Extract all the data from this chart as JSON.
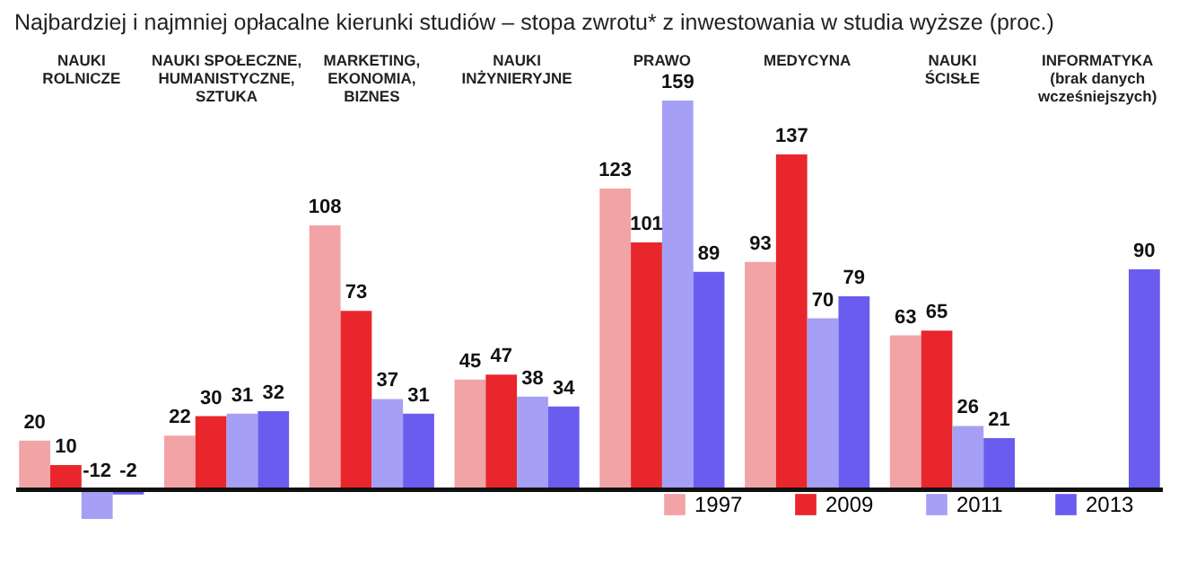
{
  "chart_data": {
    "type": "bar",
    "title": "Najbardziej i najmniej opłacalne kierunki studiów – stopa zwrotu* z inwestowania w studia wyższe (proc.)",
    "categories": [
      "NAUKI\nROLNICZE",
      "NAUKI SPOŁECZNE,\nHUMANISTYCZNE,\nSZTUKA",
      "MARKETING,\nEKONOMIA,\nBIZNES",
      "NAUKI\nINŻYNIERYJNE",
      "PRAWO",
      "MEDYCYNA",
      "NAUKI\nŚCISŁE",
      "INFORMATYKA\n(brak danych\nwcześniejszych)"
    ],
    "series": [
      {
        "name": "1997",
        "color": "#f2a3a6",
        "values": [
          20,
          22,
          108,
          45,
          123,
          93,
          63,
          null
        ]
      },
      {
        "name": "2009",
        "color": "#e8262b",
        "values": [
          10,
          30,
          73,
          47,
          101,
          137,
          65,
          null
        ]
      },
      {
        "name": "2011",
        "color": "#a59ff5",
        "values": [
          -12,
          31,
          37,
          38,
          159,
          70,
          26,
          null
        ]
      },
      {
        "name": "2013",
        "color": "#6a5cef",
        "values": [
          -2,
          32,
          31,
          34,
          89,
          79,
          21,
          90
        ]
      }
    ],
    "data_labels": true,
    "legend": "bottom right",
    "grid": false
  }
}
